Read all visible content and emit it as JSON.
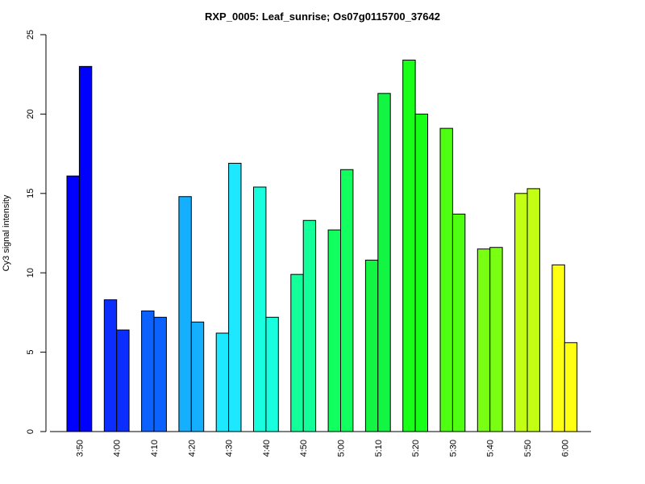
{
  "chart_data": {
    "type": "bar",
    "title": "RXP_0005: Leaf_sunrise; Os07g0115700_37642",
    "xlabel": "",
    "ylabel": "Cy3 signal intensity",
    "ylim": [
      0,
      25
    ],
    "yticks": [
      0,
      5,
      10,
      15,
      20,
      25
    ],
    "categories": [
      "3:50",
      "4:00",
      "4:10",
      "4:20",
      "4:30",
      "4:40",
      "4:50",
      "5:00",
      "5:10",
      "5:20",
      "5:30",
      "5:40",
      "5:50",
      "6:00"
    ],
    "colors": [
      "#0000FF",
      "#0B2EFF",
      "#0C62FF",
      "#14B0FF",
      "#1CE8FF",
      "#18FFE0",
      "#12FF9A",
      "#12FF60",
      "#12F542",
      "#18FF18",
      "#4EFF12",
      "#78FF12",
      "#C2FF12",
      "#FFFF12"
    ],
    "series": [
      {
        "values": [
          16.1,
          8.3,
          7.6,
          14.8,
          6.2,
          15.4,
          9.9,
          12.7,
          10.8,
          23.4,
          19.1,
          11.5,
          15.0,
          10.5
        ]
      },
      {
        "values": [
          23.0,
          6.4,
          7.2,
          6.9,
          16.9,
          7.2,
          13.3,
          16.5,
          21.3,
          20.0,
          13.7,
          11.6,
          15.3,
          5.6
        ]
      }
    ],
    "grid": false,
    "legend": "none"
  }
}
